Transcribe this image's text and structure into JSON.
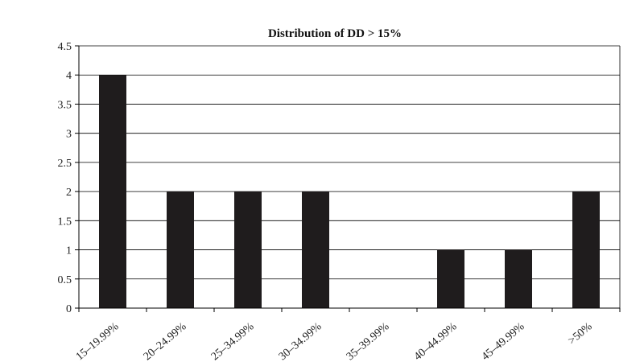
{
  "chart_data": {
    "type": "bar",
    "title": "Distribution of DD > 15%",
    "categories": [
      "15–19.99%",
      "20–24.99%",
      "25–34.99%",
      "30–34.99%",
      "35–39.99%",
      "40–44.99%",
      "45–49.99%",
      ">50%"
    ],
    "values": [
      4,
      2,
      2,
      2,
      0,
      1,
      1,
      2
    ],
    "ylim": [
      0,
      4.5
    ],
    "yticks": [
      "0",
      "0.5",
      "1",
      "1.5",
      "2",
      "2.5",
      "3",
      "3.5",
      "4",
      "4.5"
    ],
    "grid": "horizontal",
    "bar_color": "#1f1c1d",
    "grid_color": "#000000"
  }
}
